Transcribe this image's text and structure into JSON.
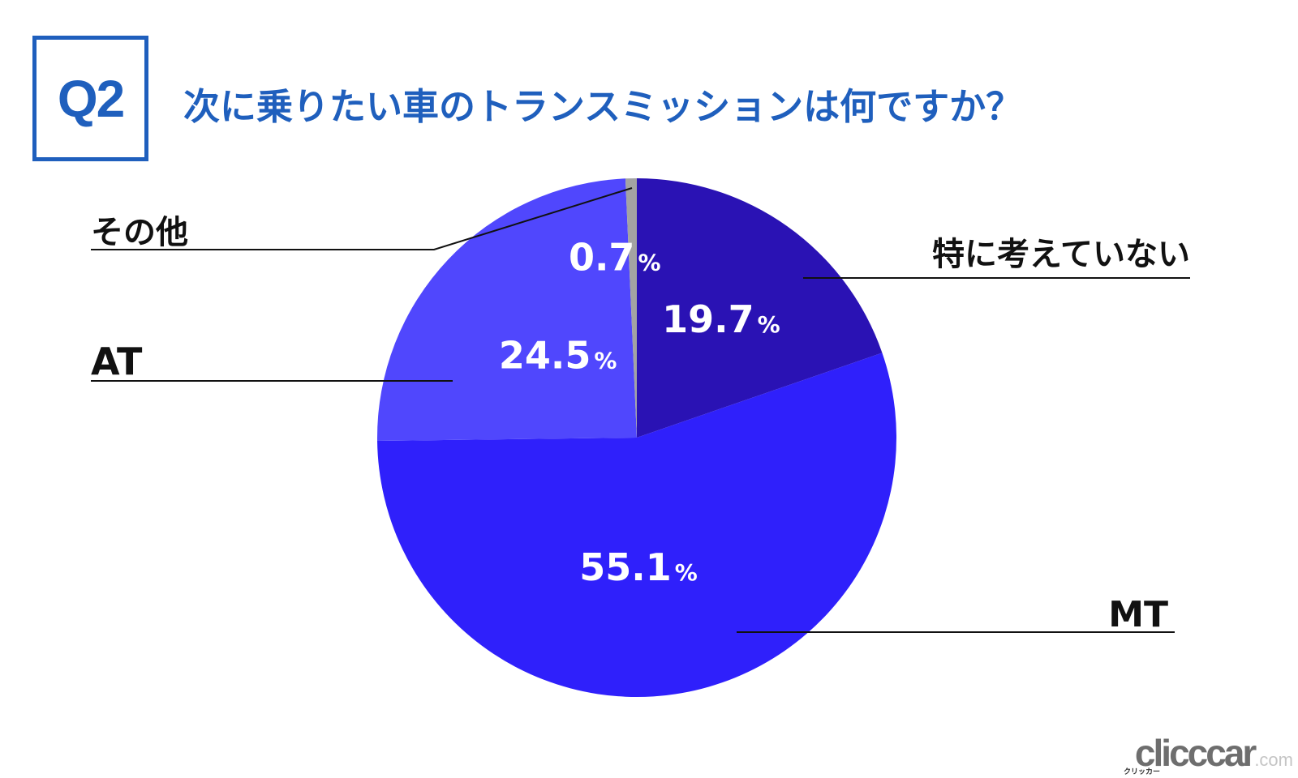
{
  "question": {
    "label": "Q2",
    "title": "次に乗りたい車のトランスミッションは何ですか？"
  },
  "chart_data": {
    "type": "pie",
    "title": "次に乗りたい車のトランスミッションは何ですか？",
    "percent_sign": "%",
    "slices": [
      {
        "name": "特に考えていない",
        "value": 19.7,
        "label": "19.7",
        "color": "#2a12b4"
      },
      {
        "name": "MT",
        "value": 55.1,
        "label": "55.1",
        "color": "#2f20fb"
      },
      {
        "name": "AT",
        "value": 24.5,
        "label": "24.5",
        "color": "#5047fd"
      },
      {
        "name": "その他",
        "value": 0.7,
        "label": "0.7",
        "color": "#a3a3a3"
      }
    ],
    "start_angle": "12 o'clock",
    "direction": "clockwise"
  },
  "watermark": {
    "text": "clicccar",
    "suffix": ".com",
    "sub": "クリッカー"
  }
}
